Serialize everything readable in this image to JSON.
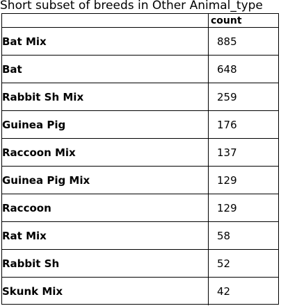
{
  "caption": "Short subset of breeds in Other Animal_type",
  "table": {
    "header": {
      "count_label": "count"
    },
    "rows": [
      {
        "label": "Bat Mix",
        "count": "885"
      },
      {
        "label": "Bat",
        "count": "648"
      },
      {
        "label": "Rabbit Sh Mix",
        "count": "259"
      },
      {
        "label": "Guinea Pig",
        "count": "176"
      },
      {
        "label": "Raccoon Mix",
        "count": "137"
      },
      {
        "label": "Guinea Pig Mix",
        "count": "129"
      },
      {
        "label": "Raccoon",
        "count": "129"
      },
      {
        "label": "Rat Mix",
        "count": "58"
      },
      {
        "label": "Rabbit Sh",
        "count": "52"
      },
      {
        "label": "Skunk Mix",
        "count": "42"
      }
    ]
  }
}
